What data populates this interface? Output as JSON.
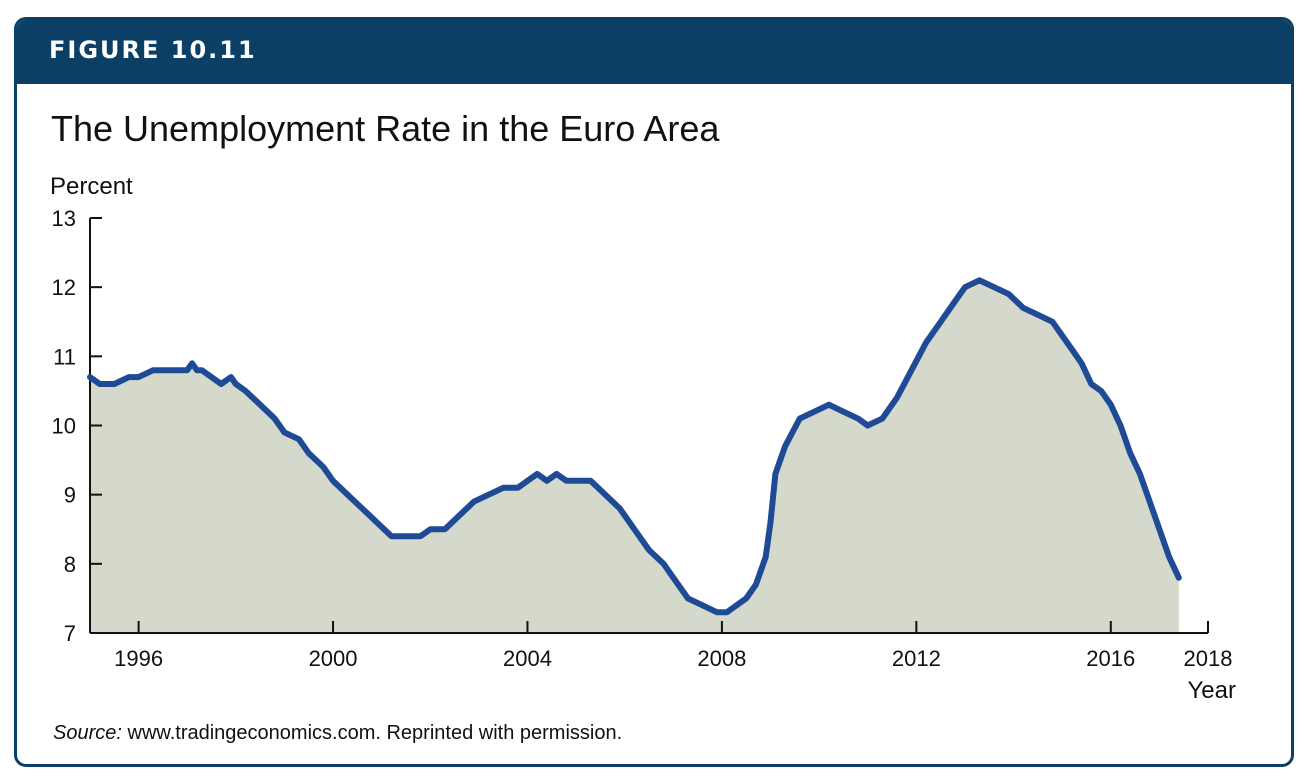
{
  "figure_label": "FIGURE 10.11",
  "source": {
    "prefix": "Source:",
    "text": " www.tradingeconomics.com. Reprinted with permission."
  },
  "colors": {
    "banner": "#0b3f66",
    "line": "#1f4a96",
    "area": "#d5d9cc",
    "axis": "#111111"
  },
  "chart_data": {
    "type": "area",
    "title": "The Unemployment Rate in the Euro Area",
    "xlabel": "Year",
    "ylabel": "Percent",
    "xlim": [
      1995,
      2018
    ],
    "ylim": [
      7,
      13
    ],
    "xticks": [
      1996,
      2000,
      2004,
      2008,
      2012,
      2016,
      2018
    ],
    "yticks": [
      7,
      8,
      9,
      10,
      11,
      12,
      13
    ],
    "grid": false,
    "legend": "none",
    "series": [
      {
        "x": [
          1995.0,
          1995.2,
          1995.5,
          1995.8,
          1996.0,
          1996.3,
          1996.5,
          1996.8,
          1997.0,
          1997.1,
          1997.2,
          1997.3,
          1997.5,
          1997.7,
          1997.9,
          1998.0,
          1998.2,
          1998.5,
          1998.8,
          1999.0,
          1999.3,
          1999.5,
          1999.8,
          2000.0,
          2000.3,
          2000.6,
          2000.9,
          2001.2,
          2001.5,
          2001.8,
          2002.0,
          2002.3,
          2002.6,
          2002.9,
          2003.2,
          2003.5,
          2003.8,
          2004.0,
          2004.2,
          2004.4,
          2004.6,
          2004.8,
          2005.0,
          2005.3,
          2005.6,
          2005.9,
          2006.2,
          2006.5,
          2006.8,
          2007.0,
          2007.3,
          2007.6,
          2007.9,
          2008.1,
          2008.3,
          2008.5,
          2008.7,
          2008.9,
          2009.0,
          2009.1,
          2009.3,
          2009.6,
          2009.9,
          2010.2,
          2010.5,
          2010.8,
          2011.0,
          2011.3,
          2011.6,
          2011.9,
          2012.2,
          2012.5,
          2012.8,
          2013.0,
          2013.3,
          2013.6,
          2013.9,
          2014.2,
          2014.5,
          2014.8,
          2015.0,
          2015.2,
          2015.4,
          2015.6,
          2015.8,
          2016.0,
          2016.2,
          2016.4,
          2016.6,
          2016.8,
          2017.0,
          2017.2,
          2017.4
        ],
        "y": [
          10.7,
          10.6,
          10.6,
          10.7,
          10.7,
          10.8,
          10.8,
          10.8,
          10.8,
          10.9,
          10.8,
          10.8,
          10.7,
          10.6,
          10.7,
          10.6,
          10.5,
          10.3,
          10.1,
          9.9,
          9.8,
          9.6,
          9.4,
          9.2,
          9.0,
          8.8,
          8.6,
          8.4,
          8.4,
          8.4,
          8.5,
          8.5,
          8.7,
          8.9,
          9.0,
          9.1,
          9.1,
          9.2,
          9.3,
          9.2,
          9.3,
          9.2,
          9.2,
          9.2,
          9.0,
          8.8,
          8.5,
          8.2,
          8.0,
          7.8,
          7.5,
          7.4,
          7.3,
          7.3,
          7.4,
          7.5,
          7.7,
          8.1,
          8.6,
          9.3,
          9.7,
          10.1,
          10.2,
          10.3,
          10.2,
          10.1,
          10.0,
          10.1,
          10.4,
          10.8,
          11.2,
          11.5,
          11.8,
          12.0,
          12.1,
          12.0,
          11.9,
          11.7,
          11.6,
          11.5,
          11.3,
          11.1,
          10.9,
          10.6,
          10.5,
          10.3,
          10.0,
          9.6,
          9.3,
          8.9,
          8.5,
          8.1,
          7.8
        ]
      }
    ]
  }
}
